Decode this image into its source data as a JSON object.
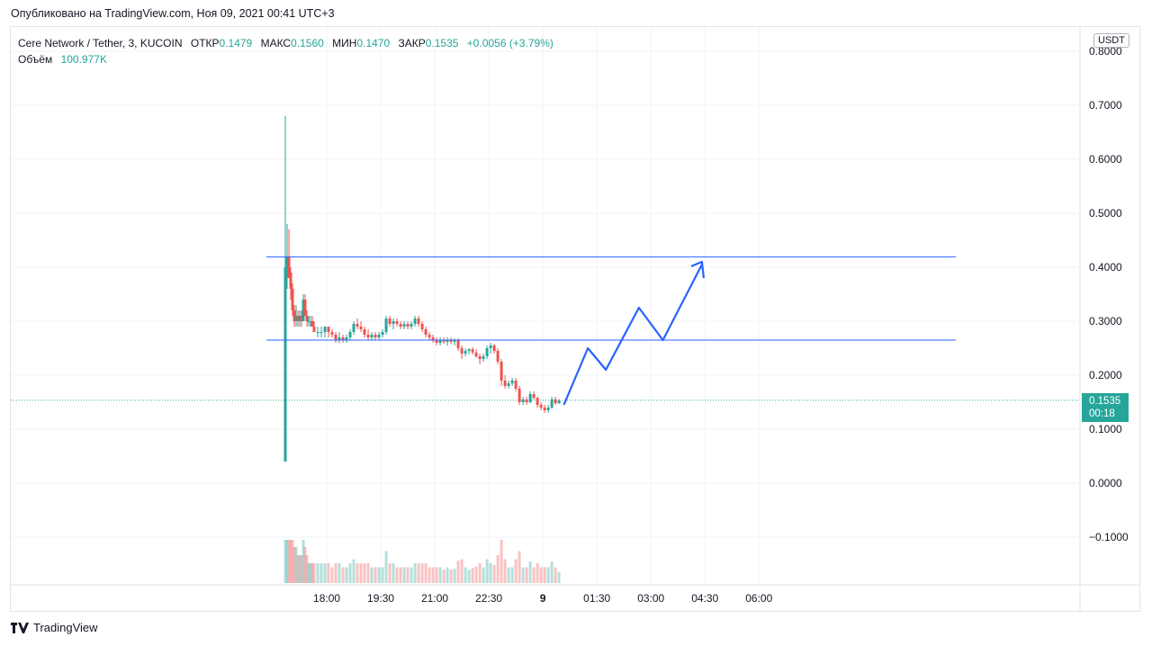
{
  "published": "Опубликовано на TradingView.com, Ноя 09, 2021 00:41 UTC+3",
  "legend": {
    "symbol": "Cere Network / Tether, 3, KUCOIN",
    "open_label": "ОТКР",
    "open": "0.1479",
    "high_label": "МАКС",
    "high": "0.1560",
    "low_label": "МИН",
    "low": "0.1470",
    "close_label": "ЗАКР",
    "close": "0.1535",
    "change": "+0.0056 (+3.79%)",
    "volume_label": "Объём",
    "volume": "100.977K"
  },
  "currency": "USDT",
  "last_price": {
    "price": "0.1535",
    "countdown": "00:18"
  },
  "colors": {
    "up": "#26a69a",
    "down": "#ef5350",
    "drawing": "#2962ff",
    "grid": "#f0f3fa"
  },
  "brand": {
    "name": "TradingView",
    "logo_icon": "tradingview-logo-icon"
  },
  "chart_data": {
    "type": "candlestick",
    "y_ticks": [
      "0.8000",
      "0.7000",
      "0.6000",
      "0.5000",
      "0.4000",
      "0.3000",
      "0.2000",
      "0.1000",
      "0.0000",
      "−0.1000"
    ],
    "x_ticks": [
      "18:00",
      "19:30",
      "21:00",
      "22:30",
      "9",
      "01:30",
      "03:00",
      "04:30",
      "06:00"
    ],
    "ylim": [
      -0.175,
      0.81
    ],
    "grid": true,
    "last_price": 0.1535,
    "horizontal_lines": [
      0.419,
      0.265
    ],
    "projection_path": [
      {
        "x": "00:35",
        "y": 0.145
      },
      {
        "x": "01:15",
        "y": 0.25
      },
      {
        "x": "01:45",
        "y": 0.21
      },
      {
        "x": "02:40",
        "y": 0.325
      },
      {
        "x": "03:20",
        "y": 0.265
      },
      {
        "x": "04:25",
        "y": 0.405
      }
    ],
    "series": [
      {
        "name": "OHLC",
        "points": [
          {
            "t": "16:51",
            "o": 0.04,
            "h": 0.68,
            "l": 0.04,
            "c": 0.4
          },
          {
            "t": "16:54",
            "o": 0.4,
            "h": 0.48,
            "l": 0.36,
            "c": 0.42
          },
          {
            "t": "16:57",
            "o": 0.42,
            "h": 0.47,
            "l": 0.38,
            "c": 0.38
          },
          {
            "t": "17:00",
            "o": 0.39,
            "h": 0.4,
            "l": 0.34,
            "c": 0.36
          },
          {
            "t": "17:03",
            "o": 0.36,
            "h": 0.37,
            "l": 0.31,
            "c": 0.32
          },
          {
            "t": "17:06",
            "o": 0.32,
            "h": 0.33,
            "l": 0.29,
            "c": 0.3
          },
          {
            "t": "17:09",
            "o": 0.3,
            "h": 0.33,
            "l": 0.29,
            "c": 0.31
          },
          {
            "t": "17:12",
            "o": 0.31,
            "h": 0.32,
            "l": 0.29,
            "c": 0.3
          },
          {
            "t": "17:15",
            "o": 0.3,
            "h": 0.32,
            "l": 0.29,
            "c": 0.31
          },
          {
            "t": "17:18",
            "o": 0.31,
            "h": 0.32,
            "l": 0.29,
            "c": 0.3
          },
          {
            "t": "17:21",
            "o": 0.3,
            "h": 0.35,
            "l": 0.3,
            "c": 0.34
          },
          {
            "t": "17:24",
            "o": 0.34,
            "h": 0.35,
            "l": 0.31,
            "c": 0.31
          },
          {
            "t": "17:27",
            "o": 0.31,
            "h": 0.32,
            "l": 0.29,
            "c": 0.3
          },
          {
            "t": "17:30",
            "o": 0.3,
            "h": 0.31,
            "l": 0.29,
            "c": 0.3
          },
          {
            "t": "17:33",
            "o": 0.3,
            "h": 0.31,
            "l": 0.29,
            "c": 0.3
          },
          {
            "t": "17:36",
            "o": 0.3,
            "h": 0.31,
            "l": 0.29,
            "c": 0.29
          },
          {
            "t": "17:39",
            "o": 0.29,
            "h": 0.3,
            "l": 0.28,
            "c": 0.28
          },
          {
            "t": "17:45",
            "o": 0.28,
            "h": 0.29,
            "l": 0.27,
            "c": 0.28
          },
          {
            "t": "17:51",
            "o": 0.28,
            "h": 0.29,
            "l": 0.27,
            "c": 0.28
          },
          {
            "t": "17:57",
            "o": 0.28,
            "h": 0.29,
            "l": 0.27,
            "c": 0.29
          },
          {
            "t": "18:03",
            "o": 0.29,
            "h": 0.29,
            "l": 0.27,
            "c": 0.28
          },
          {
            "t": "18:09",
            "o": 0.28,
            "h": 0.285,
            "l": 0.27,
            "c": 0.275
          },
          {
            "t": "18:15",
            "o": 0.275,
            "h": 0.28,
            "l": 0.26,
            "c": 0.265
          },
          {
            "t": "18:21",
            "o": 0.265,
            "h": 0.28,
            "l": 0.26,
            "c": 0.27
          },
          {
            "t": "18:27",
            "o": 0.27,
            "h": 0.275,
            "l": 0.26,
            "c": 0.265
          },
          {
            "t": "18:33",
            "o": 0.265,
            "h": 0.275,
            "l": 0.26,
            "c": 0.27
          },
          {
            "t": "18:39",
            "o": 0.27,
            "h": 0.285,
            "l": 0.265,
            "c": 0.28
          },
          {
            "t": "18:45",
            "o": 0.28,
            "h": 0.3,
            "l": 0.275,
            "c": 0.295
          },
          {
            "t": "18:51",
            "o": 0.295,
            "h": 0.305,
            "l": 0.285,
            "c": 0.29
          },
          {
            "t": "18:57",
            "o": 0.29,
            "h": 0.3,
            "l": 0.28,
            "c": 0.285
          },
          {
            "t": "19:03",
            "o": 0.285,
            "h": 0.29,
            "l": 0.27,
            "c": 0.275
          },
          {
            "t": "19:09",
            "o": 0.275,
            "h": 0.285,
            "l": 0.265,
            "c": 0.27
          },
          {
            "t": "19:15",
            "o": 0.27,
            "h": 0.28,
            "l": 0.265,
            "c": 0.275
          },
          {
            "t": "19:21",
            "o": 0.275,
            "h": 0.28,
            "l": 0.265,
            "c": 0.27
          },
          {
            "t": "19:27",
            "o": 0.27,
            "h": 0.28,
            "l": 0.265,
            "c": 0.275
          },
          {
            "t": "19:33",
            "o": 0.275,
            "h": 0.285,
            "l": 0.27,
            "c": 0.28
          },
          {
            "t": "19:39",
            "o": 0.28,
            "h": 0.31,
            "l": 0.275,
            "c": 0.305
          },
          {
            "t": "19:45",
            "o": 0.305,
            "h": 0.31,
            "l": 0.29,
            "c": 0.295
          },
          {
            "t": "19:51",
            "o": 0.295,
            "h": 0.305,
            "l": 0.285,
            "c": 0.3
          },
          {
            "t": "19:57",
            "o": 0.3,
            "h": 0.305,
            "l": 0.29,
            "c": 0.295
          },
          {
            "t": "20:03",
            "o": 0.295,
            "h": 0.3,
            "l": 0.285,
            "c": 0.29
          },
          {
            "t": "20:09",
            "o": 0.29,
            "h": 0.3,
            "l": 0.285,
            "c": 0.295
          },
          {
            "t": "20:15",
            "o": 0.295,
            "h": 0.3,
            "l": 0.285,
            "c": 0.29
          },
          {
            "t": "20:21",
            "o": 0.29,
            "h": 0.3,
            "l": 0.285,
            "c": 0.295
          },
          {
            "t": "20:27",
            "o": 0.295,
            "h": 0.31,
            "l": 0.29,
            "c": 0.305
          },
          {
            "t": "20:33",
            "o": 0.305,
            "h": 0.31,
            "l": 0.29,
            "c": 0.295
          },
          {
            "t": "20:39",
            "o": 0.295,
            "h": 0.3,
            "l": 0.28,
            "c": 0.285
          },
          {
            "t": "20:45",
            "o": 0.285,
            "h": 0.29,
            "l": 0.27,
            "c": 0.275
          },
          {
            "t": "20:51",
            "o": 0.275,
            "h": 0.28,
            "l": 0.265,
            "c": 0.27
          },
          {
            "t": "20:57",
            "o": 0.27,
            "h": 0.275,
            "l": 0.26,
            "c": 0.265
          },
          {
            "t": "21:03",
            "o": 0.265,
            "h": 0.27,
            "l": 0.255,
            "c": 0.26
          },
          {
            "t": "21:09",
            "o": 0.26,
            "h": 0.27,
            "l": 0.255,
            "c": 0.265
          },
          {
            "t": "21:15",
            "o": 0.265,
            "h": 0.27,
            "l": 0.258,
            "c": 0.262
          },
          {
            "t": "21:21",
            "o": 0.262,
            "h": 0.27,
            "l": 0.255,
            "c": 0.265
          },
          {
            "t": "21:27",
            "o": 0.265,
            "h": 0.27,
            "l": 0.258,
            "c": 0.262
          },
          {
            "t": "21:33",
            "o": 0.262,
            "h": 0.268,
            "l": 0.255,
            "c": 0.265
          },
          {
            "t": "21:39",
            "o": 0.265,
            "h": 0.268,
            "l": 0.245,
            "c": 0.25
          },
          {
            "t": "21:45",
            "o": 0.25,
            "h": 0.255,
            "l": 0.23,
            "c": 0.24
          },
          {
            "t": "21:51",
            "o": 0.24,
            "h": 0.25,
            "l": 0.235,
            "c": 0.245
          },
          {
            "t": "21:57",
            "o": 0.245,
            "h": 0.25,
            "l": 0.238,
            "c": 0.248
          },
          {
            "t": "22:03",
            "o": 0.248,
            "h": 0.252,
            "l": 0.238,
            "c": 0.242
          },
          {
            "t": "22:09",
            "o": 0.242,
            "h": 0.248,
            "l": 0.232,
            "c": 0.235
          },
          {
            "t": "22:15",
            "o": 0.235,
            "h": 0.24,
            "l": 0.22,
            "c": 0.23
          },
          {
            "t": "22:21",
            "o": 0.23,
            "h": 0.24,
            "l": 0.225,
            "c": 0.235
          },
          {
            "t": "22:27",
            "o": 0.235,
            "h": 0.255,
            "l": 0.23,
            "c": 0.25
          },
          {
            "t": "22:33",
            "o": 0.25,
            "h": 0.26,
            "l": 0.24,
            "c": 0.255
          },
          {
            "t": "22:39",
            "o": 0.255,
            "h": 0.258,
            "l": 0.24,
            "c": 0.245
          },
          {
            "t": "22:45",
            "o": 0.245,
            "h": 0.25,
            "l": 0.22,
            "c": 0.225
          },
          {
            "t": "22:51",
            "o": 0.225,
            "h": 0.23,
            "l": 0.18,
            "c": 0.19
          },
          {
            "t": "22:57",
            "o": 0.19,
            "h": 0.2,
            "l": 0.175,
            "c": 0.18
          },
          {
            "t": "23:03",
            "o": 0.18,
            "h": 0.19,
            "l": 0.175,
            "c": 0.185
          },
          {
            "t": "23:09",
            "o": 0.185,
            "h": 0.195,
            "l": 0.18,
            "c": 0.19
          },
          {
            "t": "23:15",
            "o": 0.19,
            "h": 0.195,
            "l": 0.17,
            "c": 0.175
          },
          {
            "t": "23:21",
            "o": 0.175,
            "h": 0.18,
            "l": 0.145,
            "c": 0.15
          },
          {
            "t": "23:27",
            "o": 0.15,
            "h": 0.16,
            "l": 0.145,
            "c": 0.155
          },
          {
            "t": "23:33",
            "o": 0.155,
            "h": 0.16,
            "l": 0.145,
            "c": 0.15
          },
          {
            "t": "23:39",
            "o": 0.15,
            "h": 0.17,
            "l": 0.148,
            "c": 0.165
          },
          {
            "t": "23:45",
            "o": 0.165,
            "h": 0.17,
            "l": 0.155,
            "c": 0.158
          },
          {
            "t": "23:51",
            "o": 0.158,
            "h": 0.16,
            "l": 0.14,
            "c": 0.145
          },
          {
            "t": "23:57",
            "o": 0.145,
            "h": 0.15,
            "l": 0.135,
            "c": 0.14
          },
          {
            "t": "00:03",
            "o": 0.14,
            "h": 0.145,
            "l": 0.13,
            "c": 0.135
          },
          {
            "t": "00:09",
            "o": 0.135,
            "h": 0.145,
            "l": 0.13,
            "c": 0.14
          },
          {
            "t": "00:15",
            "o": 0.14,
            "h": 0.16,
            "l": 0.138,
            "c": 0.155
          },
          {
            "t": "00:21",
            "o": 0.155,
            "h": 0.16,
            "l": 0.145,
            "c": 0.148
          },
          {
            "t": "00:27",
            "o": 0.148,
            "h": 0.156,
            "l": 0.147,
            "c": 0.1535
          }
        ]
      }
    ]
  }
}
